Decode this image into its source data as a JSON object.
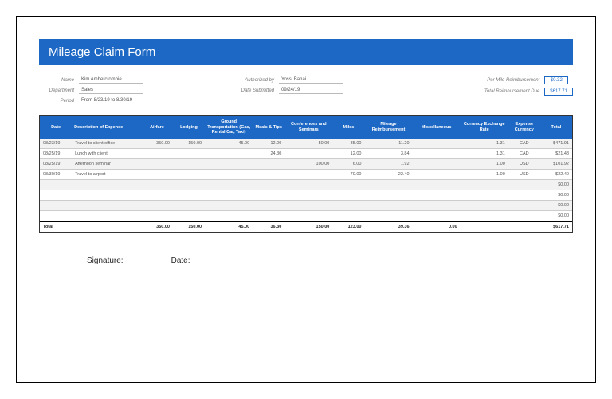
{
  "title": "Mileage Claim Form",
  "meta": {
    "left": [
      {
        "label": "Name",
        "value": "Kim Ambercrombie"
      },
      {
        "label": "Department",
        "value": "Sales"
      },
      {
        "label": "Period",
        "value": "From 8/23/19 to 8/30/19"
      }
    ],
    "mid": [
      {
        "label": "Authorized by",
        "value": "Yossi Banai"
      },
      {
        "label": "Date Submitted",
        "value": "09/24/19"
      }
    ],
    "right": [
      {
        "label": "Per Mile Reimbursement",
        "box": "$0.32"
      },
      {
        "label": "Total Reimbursement Due",
        "box": "$617.71"
      }
    ]
  },
  "columns": [
    "Date",
    "Description of Expense",
    "Airfare",
    "Lodging",
    "Ground Transportation (Gas, Rental Car, Taxi)",
    "Meals & Tips",
    "Conferences and Seminars",
    "Miles",
    "Mileage Reimbursement",
    "Miscellaneous",
    "Currency Exchange Rate",
    "Expense Currency",
    "Total"
  ],
  "rows": [
    {
      "date": "08/23/19",
      "desc": "Travel to client office",
      "airfare": "350.00",
      "lodging": "150.00",
      "ground": "45.00",
      "meals": "12.00",
      "conf": "50.00",
      "miles": "35.00",
      "mileRe": "11.20",
      "misc": "",
      "rate": "1.31",
      "curr": "CAD",
      "total": "$471.91"
    },
    {
      "date": "08/25/19",
      "desc": "Lunch with client",
      "airfare": "",
      "lodging": "",
      "ground": "",
      "meals": "24.30",
      "conf": "",
      "miles": "12.00",
      "mileRe": "3.84",
      "misc": "",
      "rate": "1.31",
      "curr": "CAD",
      "total": "$21.48"
    },
    {
      "date": "08/25/19",
      "desc": "Afternoon seminar",
      "airfare": "",
      "lodging": "",
      "ground": "",
      "meals": "",
      "conf": "100.00",
      "miles": "6.00",
      "mileRe": "1.92",
      "misc": "",
      "rate": "1.00",
      "curr": "USD",
      "total": "$101.92"
    },
    {
      "date": "08/30/19",
      "desc": "Travel to airport",
      "airfare": "",
      "lodging": "",
      "ground": "",
      "meals": "",
      "conf": "",
      "miles": "70.00",
      "mileRe": "22.40",
      "misc": "",
      "rate": "1.00",
      "curr": "USD",
      "total": "$22.40"
    },
    {
      "date": "",
      "desc": "",
      "airfare": "",
      "lodging": "",
      "ground": "",
      "meals": "",
      "conf": "",
      "miles": "",
      "mileRe": "",
      "misc": "",
      "rate": "",
      "curr": "",
      "total": "$0.00"
    },
    {
      "date": "",
      "desc": "",
      "airfare": "",
      "lodging": "",
      "ground": "",
      "meals": "",
      "conf": "",
      "miles": "",
      "mileRe": "",
      "misc": "",
      "rate": "",
      "curr": "",
      "total": "$0.00"
    },
    {
      "date": "",
      "desc": "",
      "airfare": "",
      "lodging": "",
      "ground": "",
      "meals": "",
      "conf": "",
      "miles": "",
      "mileRe": "",
      "misc": "",
      "rate": "",
      "curr": "",
      "total": "$0.00"
    },
    {
      "date": "",
      "desc": "",
      "airfare": "",
      "lodging": "",
      "ground": "",
      "meals": "",
      "conf": "",
      "miles": "",
      "mileRe": "",
      "misc": "",
      "rate": "",
      "curr": "",
      "total": "$0.00"
    }
  ],
  "totals": {
    "label": "Total",
    "airfare": "350.00",
    "lodging": "150.00",
    "ground": "45.00",
    "meals": "36.30",
    "conf": "150.00",
    "miles": "123.00",
    "mileRe": "39.36",
    "misc": "0.00",
    "grand": "$617.71"
  },
  "sig": {
    "signature": "Signature:",
    "date": "Date:"
  }
}
